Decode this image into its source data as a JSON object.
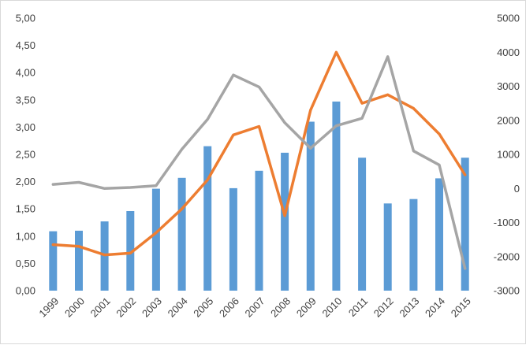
{
  "chart_data": {
    "type": "bar",
    "title": "",
    "xlabel": "",
    "ylabel": "",
    "categories": [
      "1999",
      "2000",
      "2001",
      "2002",
      "2003",
      "2004",
      "2005",
      "2006",
      "2007",
      "2008",
      "2009",
      "2010",
      "2011",
      "2012",
      "2013",
      "2014",
      "2015"
    ],
    "left_axis": {
      "range": [
        0,
        5
      ],
      "ticks": [
        "0,00",
        "0,50",
        "1,00",
        "1,50",
        "2,00",
        "2,50",
        "3,00",
        "3,50",
        "4,00",
        "4,50",
        "5,00"
      ]
    },
    "right_axis": {
      "range": [
        -3000,
        5000
      ],
      "ticks": [
        "-3000",
        "-2000",
        "-1000",
        "0",
        "1000",
        "2000",
        "3000",
        "4000",
        "5000"
      ]
    },
    "grid": false,
    "series": [
      {
        "type": "bar",
        "axis": "left",
        "color": "#5b9bd5",
        "values": [
          1.09,
          1.1,
          1.27,
          1.46,
          1.87,
          2.07,
          2.65,
          1.88,
          2.2,
          2.53,
          3.1,
          3.47,
          2.44,
          1.6,
          1.68,
          2.06,
          2.44
        ]
      },
      {
        "type": "line",
        "axis": "right",
        "color": "#ed7d31",
        "values": [
          -1650,
          -1700,
          -1950,
          -1900,
          -1300,
          -600,
          250,
          1570,
          1820,
          -800,
          2300,
          4000,
          2500,
          2750,
          2350,
          1600,
          400
        ]
      },
      {
        "type": "line",
        "axis": "right",
        "color": "#a5a5a5",
        "values": [
          120,
          180,
          0,
          30,
          80,
          1150,
          2030,
          3330,
          2980,
          1930,
          1180,
          1840,
          2060,
          3870,
          1100,
          690,
          -2350
        ]
      }
    ]
  }
}
